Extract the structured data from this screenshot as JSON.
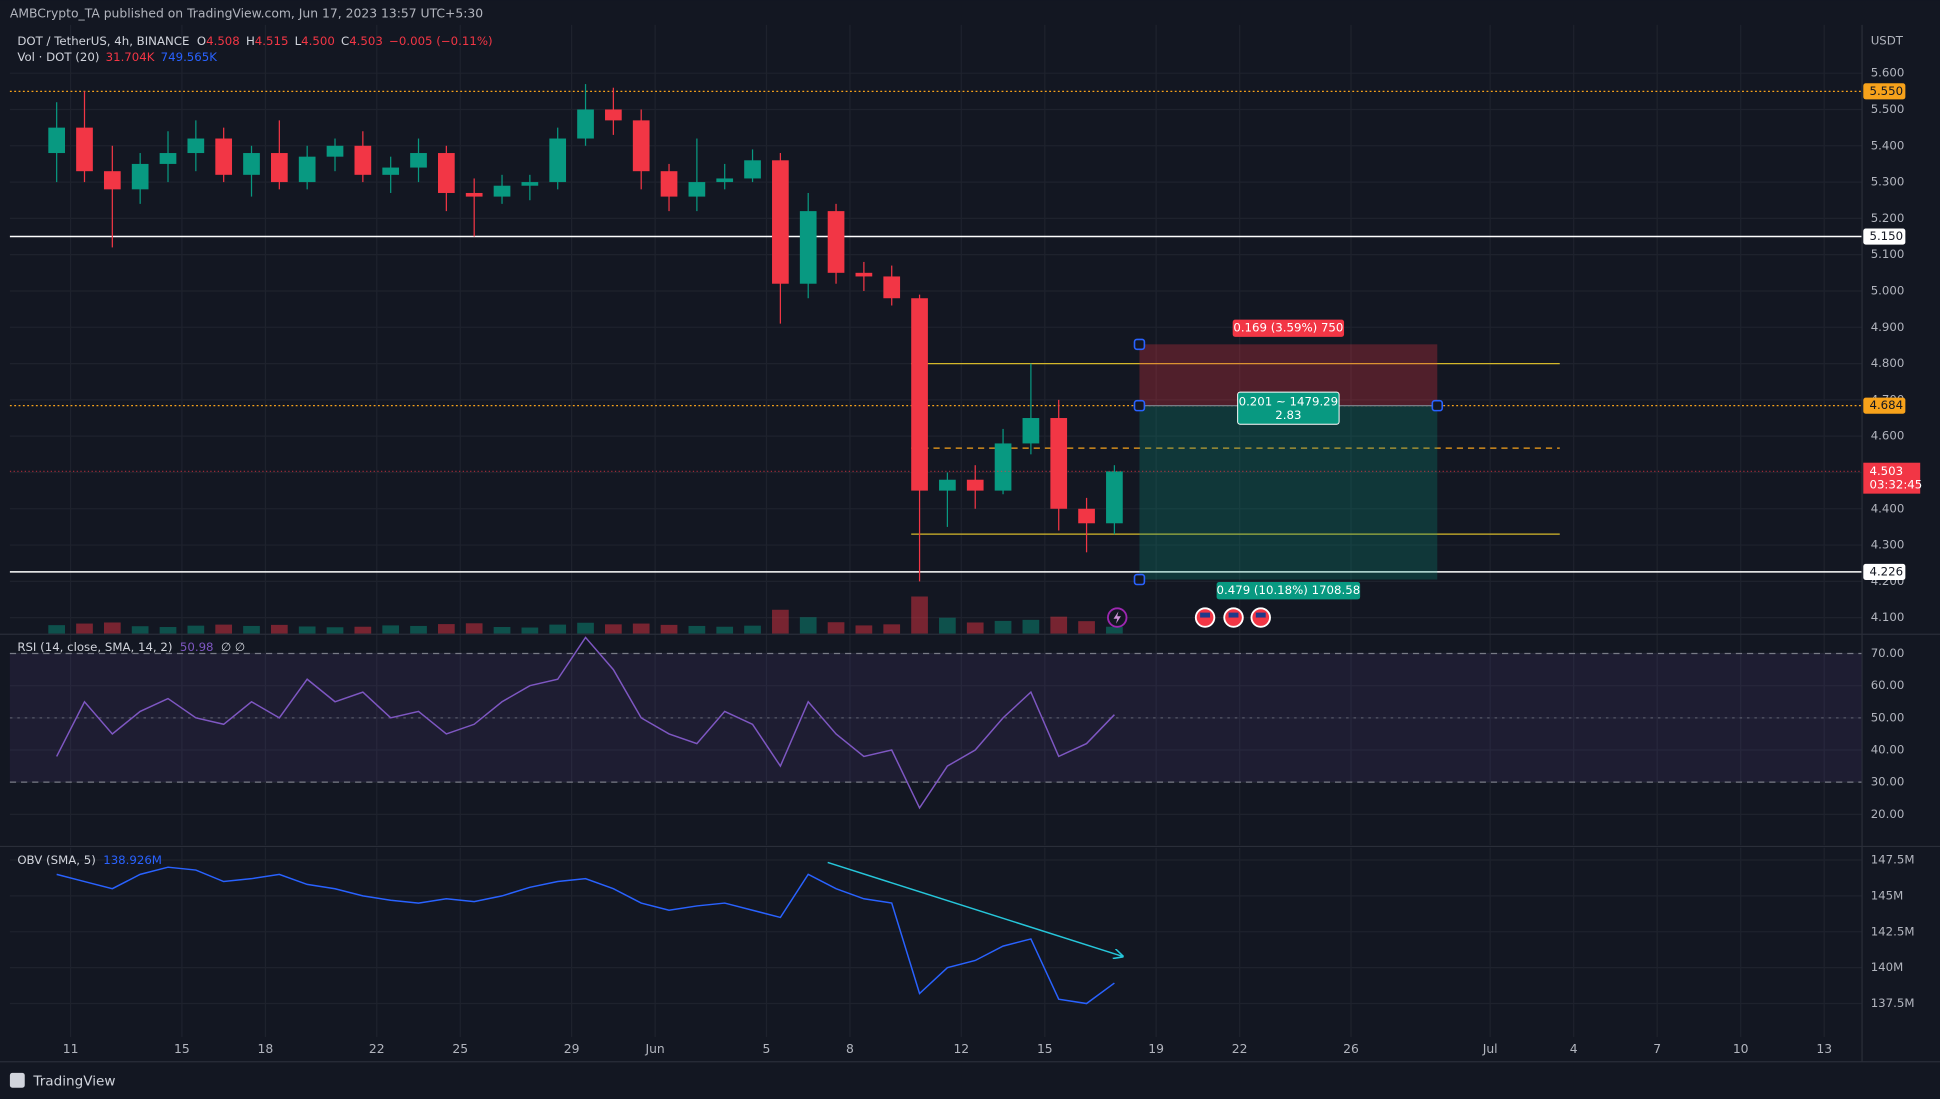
{
  "header": {
    "publisher": "AMBCrypto_TA published on TradingView.com, Jun 17, 2023 13:57 UTC+5:30"
  },
  "chart_data": [
    {
      "type": "candlestick",
      "title": "DOT / TetherUS, 4h, BINANCE",
      "ohlc_legend": [
        {
          "key": "O",
          "value": "4.508"
        },
        {
          "key": "H",
          "value": "4.515"
        },
        {
          "key": "L",
          "value": "4.500"
        },
        {
          "key": "C",
          "value": "4.503"
        }
      ],
      "change": "−0.005 (−0.11%)",
      "volume_legend": {
        "name": "Vol · DOT (20)",
        "value": "31.704K",
        "sma": "749.565K"
      },
      "axis_unit": "USDT",
      "x": [
        0,
        1,
        2,
        3,
        4,
        5,
        6,
        7,
        8,
        9,
        10,
        11,
        12,
        13,
        14,
        15,
        16,
        17,
        18,
        19,
        20,
        21,
        22,
        23,
        24,
        25,
        26,
        27,
        28,
        29,
        30,
        31,
        32,
        33,
        34,
        35,
        36,
        37,
        38
      ],
      "open": [
        5.38,
        5.45,
        5.33,
        5.28,
        5.35,
        5.38,
        5.42,
        5.32,
        5.38,
        5.3,
        5.37,
        5.4,
        5.32,
        5.34,
        5.38,
        5.27,
        5.26,
        5.29,
        5.3,
        5.42,
        5.5,
        5.47,
        5.33,
        5.26,
        5.3,
        5.31,
        5.36,
        5.02,
        5.22,
        5.05,
        5.04,
        4.98,
        4.45,
        4.48,
        4.45,
        4.58,
        4.65,
        4.4,
        4.36
      ],
      "high": [
        5.52,
        5.55,
        5.4,
        5.38,
        5.44,
        5.47,
        5.45,
        5.4,
        5.47,
        5.4,
        5.42,
        5.44,
        5.37,
        5.42,
        5.4,
        5.31,
        5.32,
        5.32,
        5.45,
        5.57,
        5.56,
        5.5,
        5.35,
        5.42,
        5.35,
        5.39,
        5.38,
        5.27,
        5.24,
        5.08,
        5.07,
        4.99,
        4.5,
        4.52,
        4.62,
        4.8,
        4.7,
        4.43,
        4.52
      ],
      "low": [
        5.3,
        5.3,
        5.12,
        5.24,
        5.3,
        5.33,
        5.3,
        5.26,
        5.28,
        5.28,
        5.33,
        5.3,
        5.27,
        5.3,
        5.22,
        5.15,
        5.24,
        5.25,
        5.28,
        5.4,
        5.43,
        5.28,
        5.22,
        5.22,
        5.28,
        5.3,
        4.91,
        4.98,
        5.02,
        5.0,
        4.96,
        4.2,
        4.35,
        4.4,
        4.44,
        4.55,
        4.34,
        4.28,
        4.33
      ],
      "close": [
        5.45,
        5.33,
        5.28,
        5.35,
        5.38,
        5.42,
        5.32,
        5.38,
        5.3,
        5.37,
        5.4,
        5.32,
        5.34,
        5.38,
        5.27,
        5.26,
        5.29,
        5.3,
        5.42,
        5.5,
        5.47,
        5.33,
        5.26,
        5.3,
        5.31,
        5.36,
        5.02,
        5.22,
        5.05,
        5.04,
        4.98,
        4.45,
        4.48,
        4.45,
        4.58,
        4.65,
        4.4,
        4.36,
        4.503
      ],
      "volume": [
        3200,
        3800,
        4200,
        2800,
        2500,
        3000,
        3400,
        2900,
        3300,
        2700,
        2400,
        2600,
        3100,
        2900,
        3600,
        3900,
        2500,
        2300,
        3400,
        4100,
        3500,
        3800,
        3300,
        2900,
        2600,
        3000,
        9000,
        6200,
        4300,
        3100,
        3500,
        14000,
        6000,
        4200,
        4800,
        5200,
        6400,
        4700,
        2600
      ],
      "up_color": "#089981",
      "down_color": "#f23645",
      "grid": true,
      "xlim": [
        -1.18,
        65.36
      ],
      "xticks": [
        {
          "value": 1,
          "label": "11"
        },
        {
          "value": 5,
          "label": "15"
        },
        {
          "value": 8,
          "label": "18"
        },
        {
          "value": 12,
          "label": "22"
        },
        {
          "value": 15,
          "label": "25"
        },
        {
          "value": 19,
          "label": "29"
        },
        {
          "value": 22,
          "label": "Jun"
        },
        {
          "value": 26,
          "label": "5"
        },
        {
          "value": 29,
          "label": "8"
        },
        {
          "value": 33,
          "label": "12"
        },
        {
          "value": 36,
          "label": "15"
        },
        {
          "value": 40,
          "label": "19"
        },
        {
          "value": 43,
          "label": "22"
        },
        {
          "value": 47,
          "label": "26"
        },
        {
          "value": 52,
          "label": "Jul"
        },
        {
          "value": 55,
          "label": "4"
        },
        {
          "value": 58,
          "label": "7"
        },
        {
          "value": 61,
          "label": "10"
        },
        {
          "value": 64,
          "label": "13"
        }
      ],
      "ylim": [
        4.056,
        5.733
      ],
      "yticks": [
        {
          "value": 4.1,
          "label": "4.100"
        },
        {
          "value": 4.2,
          "label": "4.200"
        },
        {
          "value": 4.3,
          "label": "4.300"
        },
        {
          "value": 4.4,
          "label": "4.400"
        },
        {
          "value": 4.5,
          "label": "4.500"
        },
        {
          "value": 4.6,
          "label": "4.600"
        },
        {
          "value": 4.7,
          "label": "4.700"
        },
        {
          "value": 4.8,
          "label": "4.800"
        },
        {
          "value": 4.9,
          "label": "4.900"
        },
        {
          "value": 5.0,
          "label": "5.000"
        },
        {
          "value": 5.1,
          "label": "5.100"
        },
        {
          "value": 5.2,
          "label": "5.200"
        },
        {
          "value": 5.3,
          "label": "5.300"
        },
        {
          "value": 5.4,
          "label": "5.400"
        },
        {
          "value": 5.5,
          "label": "5.500"
        },
        {
          "value": 5.6,
          "label": "5.600"
        }
      ],
      "levels": [
        {
          "value": 5.55,
          "label": "5.550",
          "style": "dotted",
          "color": "#f7a21b"
        },
        {
          "value": 5.15,
          "label": "5.150",
          "style": "solid",
          "color": "#ffffff"
        },
        {
          "value": 4.684,
          "label": "4.684",
          "style": "dotted",
          "color": "#f7a21b"
        },
        {
          "value": 4.226,
          "label": "4.226",
          "style": "solid",
          "color": "#ffffff"
        }
      ],
      "last_price": {
        "value": 4.503,
        "label": "4.503",
        "countdown": "03:32:45",
        "color": "#f23645"
      },
      "range_lines": {
        "x": [
          31.2,
          54.5
        ],
        "values": [
          4.8,
          4.33
        ],
        "mid": 4.567,
        "color": "#d4b82a",
        "mid_color": "#f7a21b"
      },
      "position": {
        "x": [
          39.4,
          50.1
        ],
        "entry": 4.684,
        "stop": 4.853,
        "target": 4.205,
        "stop_label": "0.169 (3.59%) 750",
        "mid_label": "0.201 ~ 1479.29",
        "ratio_label": "2.83",
        "target_label": "0.479 (10.18%) 1708.58"
      }
    },
    {
      "type": "line",
      "title": "RSI (14, close, SMA, 14, 2)",
      "value_label": "50.98",
      "extra": "∅ ∅",
      "x": [
        0,
        1,
        2,
        3,
        4,
        5,
        6,
        7,
        8,
        9,
        10,
        11,
        12,
        13,
        14,
        15,
        16,
        17,
        18,
        19,
        20,
        21,
        22,
        23,
        24,
        25,
        26,
        27,
        28,
        29,
        30,
        31,
        32,
        33,
        34,
        35,
        36,
        37,
        38
      ],
      "values": [
        38,
        55,
        45,
        52,
        56,
        50,
        48,
        55,
        50,
        62,
        55,
        58,
        50,
        52,
        45,
        48,
        55,
        60,
        62,
        75,
        65,
        50,
        45,
        42,
        52,
        48,
        35,
        55,
        45,
        38,
        40,
        22,
        35,
        40,
        50,
        58,
        38,
        42,
        50.98
      ],
      "color": "#7e57c2",
      "band": [
        30,
        70
      ],
      "ylim": [
        10.4,
        75.8
      ],
      "yticks": [
        {
          "value": 20,
          "label": "20.00"
        },
        {
          "value": 30,
          "label": "30.00"
        },
        {
          "value": 40,
          "label": "40.00"
        },
        {
          "value": 50,
          "label": "50.00"
        },
        {
          "value": 60,
          "label": "60.00"
        },
        {
          "value": 70,
          "label": "70.00"
        }
      ]
    },
    {
      "type": "line",
      "title": "OBV (SMA, 5)",
      "value_label": "138.926M",
      "x": [
        0,
        1,
        2,
        3,
        4,
        5,
        6,
        7,
        8,
        9,
        10,
        11,
        12,
        13,
        14,
        15,
        16,
        17,
        18,
        19,
        20,
        21,
        22,
        23,
        24,
        25,
        26,
        27,
        28,
        29,
        30,
        31,
        32,
        33,
        34,
        35,
        36,
        37,
        38
      ],
      "values": [
        146.5,
        146.0,
        145.5,
        146.5,
        147.0,
        146.8,
        146.0,
        146.2,
        146.5,
        145.8,
        145.5,
        145.0,
        144.7,
        144.5,
        144.8,
        144.6,
        145.0,
        145.6,
        146.0,
        146.2,
        145.5,
        144.5,
        144.0,
        144.3,
        144.5,
        144.0,
        143.5,
        146.5,
        145.5,
        144.8,
        144.5,
        138.2,
        140.0,
        140.5,
        141.5,
        142.0,
        137.8,
        137.5,
        138.926
      ],
      "color": "#2962ff",
      "trendline": {
        "x": [
          28.2,
          38.8
        ],
        "values": [
          147.33,
          140.78
        ],
        "color": "#26c6da"
      },
      "ylim": [
        135.17,
        148.36
      ],
      "yticks": [
        {
          "value": 137.5,
          "label": "137.5M"
        },
        {
          "value": 140,
          "label": "140M"
        },
        {
          "value": 142.5,
          "label": "142.5M"
        },
        {
          "value": 145,
          "label": "145M"
        },
        {
          "value": 147.5,
          "label": "147.5M"
        }
      ]
    }
  ],
  "footer": {
    "brand": "TradingView"
  }
}
